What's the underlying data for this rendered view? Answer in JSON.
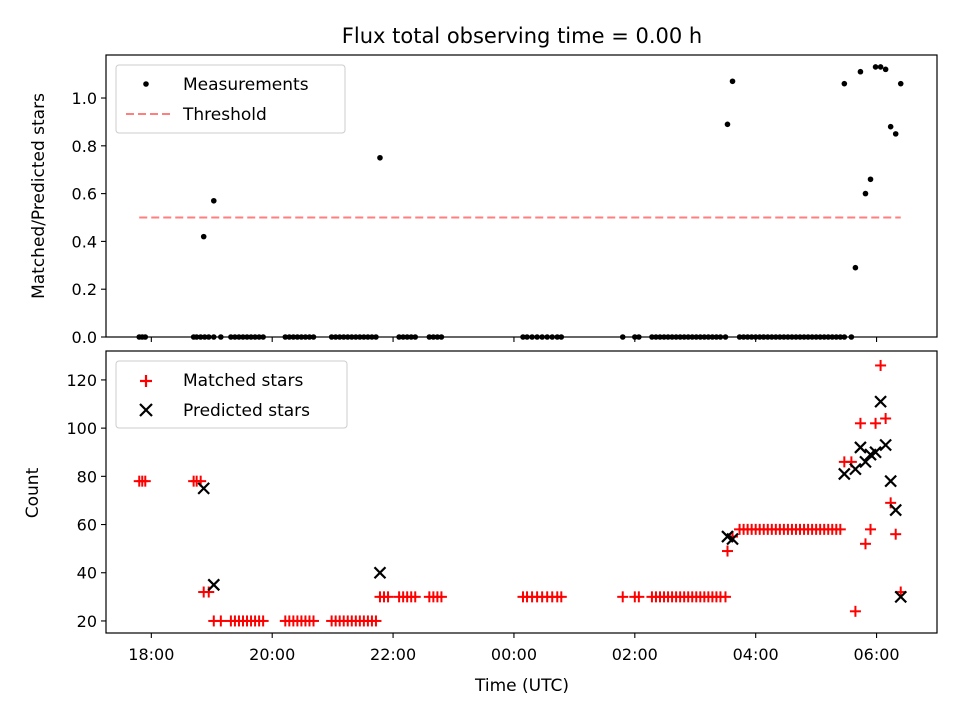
{
  "chart_data": [
    {
      "type": "scatter",
      "title": "Flux total observing time = 0.00 h",
      "xlabel": "",
      "ylabel": "Matched/Predicted stars",
      "xlim": [
        "17:15",
        "07:00"
      ],
      "ylim": [
        0.0,
        1.18
      ],
      "x_ticks": [
        "18:00",
        "20:00",
        "22:00",
        "00:00",
        "02:00",
        "04:00",
        "06:00"
      ],
      "y_ticks": [
        "0.0",
        "0.2",
        "0.4",
        "0.6",
        "0.8",
        "1.0"
      ],
      "grid": false,
      "legend": "upper left",
      "series": [
        {
          "name": "Measurements",
          "color": "#000000",
          "marker": "dot",
          "points": [
            [
              "17:48",
              0
            ],
            [
              "17:51",
              0
            ],
            [
              "17:54",
              0
            ],
            [
              "18:42",
              0
            ],
            [
              "18:45",
              0
            ],
            [
              "18:49",
              0
            ],
            [
              "18:53",
              0
            ],
            [
              "18:57",
              0
            ],
            [
              "19:02",
              0
            ],
            [
              "19:09",
              0
            ],
            [
              "18:52",
              0.42
            ],
            [
              "19:02",
              0.57
            ],
            [
              "19:19",
              0
            ],
            [
              "19:23",
              0
            ],
            [
              "19:27",
              0
            ],
            [
              "19:31",
              0
            ],
            [
              "19:35",
              0
            ],
            [
              "19:39",
              0
            ],
            [
              "19:43",
              0
            ],
            [
              "19:47",
              0
            ],
            [
              "19:51",
              0
            ],
            [
              "20:13",
              0
            ],
            [
              "20:17",
              0
            ],
            [
              "20:21",
              0
            ],
            [
              "20:25",
              0
            ],
            [
              "20:29",
              0
            ],
            [
              "20:33",
              0
            ],
            [
              "20:37",
              0
            ],
            [
              "20:41",
              0
            ],
            [
              "20:59",
              0
            ],
            [
              "21:03",
              0
            ],
            [
              "21:07",
              0
            ],
            [
              "21:11",
              0
            ],
            [
              "21:15",
              0
            ],
            [
              "21:19",
              0
            ],
            [
              "21:23",
              0
            ],
            [
              "21:27",
              0
            ],
            [
              "21:31",
              0
            ],
            [
              "21:35",
              0
            ],
            [
              "21:39",
              0
            ],
            [
              "21:43",
              0
            ],
            [
              "21:47",
              0.75
            ],
            [
              "22:06",
              0
            ],
            [
              "22:10",
              0
            ],
            [
              "22:14",
              0
            ],
            [
              "22:18",
              0
            ],
            [
              "22:22",
              0
            ],
            [
              "22:36",
              0
            ],
            [
              "22:40",
              0
            ],
            [
              "22:44",
              0
            ],
            [
              "22:48",
              0
            ],
            [
              "00:09",
              0
            ],
            [
              "00:13",
              0
            ],
            [
              "00:18",
              0
            ],
            [
              "00:23",
              0
            ],
            [
              "00:28",
              0
            ],
            [
              "00:33",
              0
            ],
            [
              "00:38",
              0
            ],
            [
              "00:43",
              0
            ],
            [
              "00:47",
              0
            ],
            [
              "01:48",
              0
            ],
            [
              "02:00",
              0
            ],
            [
              "02:04",
              0
            ],
            [
              "02:17",
              0
            ],
            [
              "02:21",
              0
            ],
            [
              "02:25",
              0
            ],
            [
              "02:29",
              0
            ],
            [
              "02:33",
              0
            ],
            [
              "02:37",
              0
            ],
            [
              "02:41",
              0
            ],
            [
              "02:45",
              0
            ],
            [
              "02:49",
              0
            ],
            [
              "02:53",
              0
            ],
            [
              "02:57",
              0
            ],
            [
              "03:01",
              0
            ],
            [
              "03:05",
              0
            ],
            [
              "03:09",
              0
            ],
            [
              "03:13",
              0
            ],
            [
              "03:17",
              0
            ],
            [
              "03:21",
              0
            ],
            [
              "03:25",
              0
            ],
            [
              "03:30",
              0
            ],
            [
              "03:32",
              0.89
            ],
            [
              "03:37",
              1.07
            ],
            [
              "03:44",
              0
            ],
            [
              "03:48",
              0
            ],
            [
              "03:52",
              0
            ],
            [
              "03:56",
              0
            ],
            [
              "04:00",
              0
            ],
            [
              "04:04",
              0
            ],
            [
              "04:08",
              0
            ],
            [
              "04:12",
              0
            ],
            [
              "04:16",
              0
            ],
            [
              "04:20",
              0
            ],
            [
              "04:24",
              0
            ],
            [
              "04:28",
              0
            ],
            [
              "04:32",
              0
            ],
            [
              "04:36",
              0
            ],
            [
              "04:40",
              0
            ],
            [
              "04:44",
              0
            ],
            [
              "04:48",
              0
            ],
            [
              "04:52",
              0
            ],
            [
              "04:56",
              0
            ],
            [
              "05:00",
              0
            ],
            [
              "05:04",
              0
            ],
            [
              "05:08",
              0
            ],
            [
              "05:12",
              0
            ],
            [
              "05:16",
              0
            ],
            [
              "05:20",
              0
            ],
            [
              "05:24",
              0
            ],
            [
              "05:28",
              0
            ],
            [
              "05:35",
              0
            ],
            [
              "05:28",
              1.06
            ],
            [
              "05:39",
              0.29
            ],
            [
              "05:44",
              1.11
            ],
            [
              "05:49",
              0.6
            ],
            [
              "05:54",
              0.66
            ],
            [
              "05:59",
              1.13
            ],
            [
              "06:04",
              1.13
            ],
            [
              "06:09",
              1.12
            ],
            [
              "06:14",
              0.88
            ],
            [
              "06:19",
              0.85
            ],
            [
              "06:24",
              1.06
            ]
          ]
        },
        {
          "name": "Threshold",
          "color": "#ff7f7f",
          "style": "dashed",
          "points": [
            [
              "17:48",
              0.5
            ],
            [
              "06:24",
              0.5
            ]
          ]
        }
      ]
    },
    {
      "type": "scatter",
      "title": "",
      "xlabel": "Time (UTC)",
      "ylabel": "Count",
      "xlim": [
        "17:15",
        "07:00"
      ],
      "ylim": [
        15,
        132
      ],
      "x_ticks": [
        "18:00",
        "20:00",
        "22:00",
        "00:00",
        "02:00",
        "04:00",
        "06:00"
      ],
      "y_ticks": [
        "20",
        "40",
        "60",
        "80",
        "100",
        "120"
      ],
      "grid": false,
      "legend": "upper left",
      "series": [
        {
          "name": "Matched stars",
          "color": "#ff0000",
          "marker": "plus",
          "points": [
            [
              "17:48",
              78
            ],
            [
              "17:51",
              78
            ],
            [
              "17:54",
              78
            ],
            [
              "18:42",
              78
            ],
            [
              "18:45",
              78
            ],
            [
              "18:49",
              78
            ],
            [
              "18:52",
              32
            ],
            [
              "18:57",
              32
            ],
            [
              "19:02",
              20
            ],
            [
              "19:09",
              20
            ],
            [
              "19:19",
              20
            ],
            [
              "19:23",
              20
            ],
            [
              "19:27",
              20
            ],
            [
              "19:31",
              20
            ],
            [
              "19:35",
              20
            ],
            [
              "19:39",
              20
            ],
            [
              "19:43",
              20
            ],
            [
              "19:47",
              20
            ],
            [
              "19:51",
              20
            ],
            [
              "20:13",
              20
            ],
            [
              "20:17",
              20
            ],
            [
              "20:21",
              20
            ],
            [
              "20:25",
              20
            ],
            [
              "20:29",
              20
            ],
            [
              "20:33",
              20
            ],
            [
              "20:37",
              20
            ],
            [
              "20:41",
              20
            ],
            [
              "20:59",
              20
            ],
            [
              "21:03",
              20
            ],
            [
              "21:07",
              20
            ],
            [
              "21:11",
              20
            ],
            [
              "21:15",
              20
            ],
            [
              "21:19",
              20
            ],
            [
              "21:23",
              20
            ],
            [
              "21:27",
              20
            ],
            [
              "21:31",
              20
            ],
            [
              "21:35",
              20
            ],
            [
              "21:39",
              20
            ],
            [
              "21:43",
              20
            ],
            [
              "21:47",
              30
            ],
            [
              "21:51",
              30
            ],
            [
              "21:55",
              30
            ],
            [
              "22:06",
              30
            ],
            [
              "22:10",
              30
            ],
            [
              "22:14",
              30
            ],
            [
              "22:18",
              30
            ],
            [
              "22:22",
              30
            ],
            [
              "22:36",
              30
            ],
            [
              "22:40",
              30
            ],
            [
              "22:44",
              30
            ],
            [
              "22:48",
              30
            ],
            [
              "00:09",
              30
            ],
            [
              "00:13",
              30
            ],
            [
              "00:18",
              30
            ],
            [
              "00:23",
              30
            ],
            [
              "00:28",
              30
            ],
            [
              "00:33",
              30
            ],
            [
              "00:38",
              30
            ],
            [
              "00:43",
              30
            ],
            [
              "00:47",
              30
            ],
            [
              "01:48",
              30
            ],
            [
              "02:00",
              30
            ],
            [
              "02:04",
              30
            ],
            [
              "02:17",
              30
            ],
            [
              "02:21",
              30
            ],
            [
              "02:25",
              30
            ],
            [
              "02:29",
              30
            ],
            [
              "02:33",
              30
            ],
            [
              "02:37",
              30
            ],
            [
              "02:41",
              30
            ],
            [
              "02:45",
              30
            ],
            [
              "02:49",
              30
            ],
            [
              "02:53",
              30
            ],
            [
              "02:57",
              30
            ],
            [
              "03:01",
              30
            ],
            [
              "03:05",
              30
            ],
            [
              "03:09",
              30
            ],
            [
              "03:13",
              30
            ],
            [
              "03:17",
              30
            ],
            [
              "03:21",
              30
            ],
            [
              "03:25",
              30
            ],
            [
              "03:30",
              30
            ],
            [
              "03:32",
              49
            ],
            [
              "03:37",
              55
            ],
            [
              "03:44",
              58
            ],
            [
              "03:48",
              58
            ],
            [
              "03:52",
              58
            ],
            [
              "03:56",
              58
            ],
            [
              "04:00",
              58
            ],
            [
              "04:04",
              58
            ],
            [
              "04:08",
              58
            ],
            [
              "04:12",
              58
            ],
            [
              "04:16",
              58
            ],
            [
              "04:20",
              58
            ],
            [
              "04:24",
              58
            ],
            [
              "04:28",
              58
            ],
            [
              "04:32",
              58
            ],
            [
              "04:36",
              58
            ],
            [
              "04:40",
              58
            ],
            [
              "04:44",
              58
            ],
            [
              "04:48",
              58
            ],
            [
              "04:52",
              58
            ],
            [
              "04:56",
              58
            ],
            [
              "05:00",
              58
            ],
            [
              "05:04",
              58
            ],
            [
              "05:08",
              58
            ],
            [
              "05:12",
              58
            ],
            [
              "05:16",
              58
            ],
            [
              "05:20",
              58
            ],
            [
              "05:24",
              58
            ],
            [
              "05:28",
              86
            ],
            [
              "05:35",
              86
            ],
            [
              "05:39",
              24
            ],
            [
              "05:44",
              102
            ],
            [
              "05:49",
              52
            ],
            [
              "05:54",
              58
            ],
            [
              "05:59",
              102
            ],
            [
              "06:04",
              126
            ],
            [
              "06:09",
              104
            ],
            [
              "06:14",
              69
            ],
            [
              "06:19",
              56
            ],
            [
              "06:24",
              32
            ]
          ]
        },
        {
          "name": "Predicted stars",
          "color": "#000000",
          "marker": "x",
          "points": [
            [
              "18:52",
              75
            ],
            [
              "19:02",
              35
            ],
            [
              "21:47",
              40
            ],
            [
              "03:32",
              55
            ],
            [
              "03:37",
              54
            ],
            [
              "05:28",
              81
            ],
            [
              "05:39",
              83
            ],
            [
              "05:44",
              92
            ],
            [
              "05:49",
              86
            ],
            [
              "05:54",
              89
            ],
            [
              "05:59",
              90
            ],
            [
              "06:04",
              111
            ],
            [
              "06:09",
              93
            ],
            [
              "06:14",
              78
            ],
            [
              "06:19",
              66
            ],
            [
              "06:24",
              30
            ]
          ]
        }
      ]
    }
  ]
}
